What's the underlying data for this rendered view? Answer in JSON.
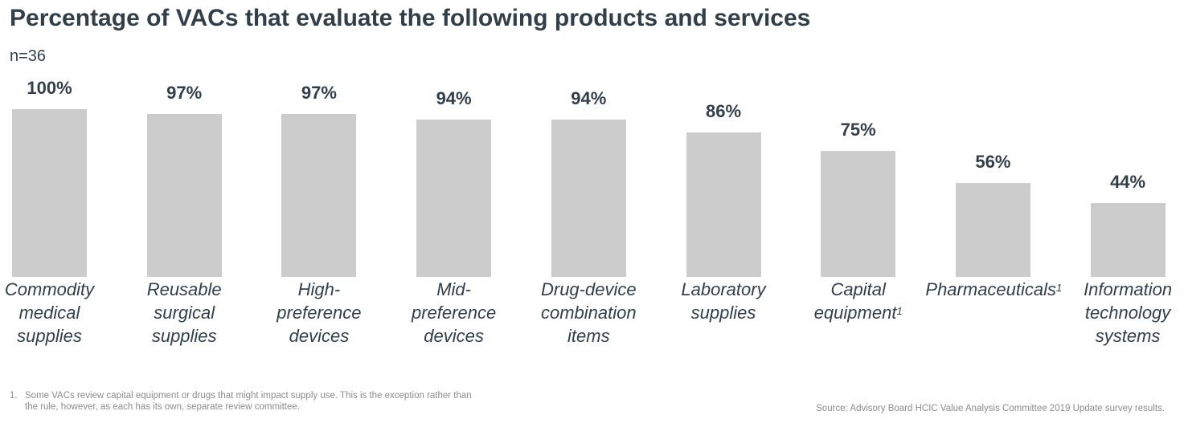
{
  "title": "Percentage of VACs that evaluate the following products and services",
  "sample": "n=36",
  "chart_data": {
    "type": "bar",
    "title": "Percentage of VACs that evaluate the following products and services",
    "xlabel": "",
    "ylabel": "",
    "ylim": [
      0,
      100
    ],
    "grid": false,
    "bar_color": "#cccccc",
    "categories": [
      {
        "lines": [
          "Commodity",
          "medical",
          "supplies"
        ],
        "footnote": ""
      },
      {
        "lines": [
          "Reusable",
          "surgical",
          "supplies"
        ],
        "footnote": ""
      },
      {
        "lines": [
          "High-",
          "preference",
          "devices"
        ],
        "footnote": ""
      },
      {
        "lines": [
          "Mid-",
          "preference",
          "devices"
        ],
        "footnote": ""
      },
      {
        "lines": [
          "Drug-device",
          "combination",
          "items"
        ],
        "footnote": ""
      },
      {
        "lines": [
          "Laboratory",
          "supplies"
        ],
        "footnote": ""
      },
      {
        "lines": [
          "Capital",
          "equipment"
        ],
        "footnote": "1"
      },
      {
        "lines": [
          "Pharmaceuticals"
        ],
        "footnote": "1"
      },
      {
        "lines": [
          "Information",
          "technology",
          "systems"
        ],
        "footnote": ""
      }
    ],
    "values": [
      100,
      97,
      97,
      94,
      94,
      86,
      75,
      56,
      44
    ],
    "labels": [
      "100%",
      "97%",
      "97%",
      "94%",
      "94%",
      "86%",
      "75%",
      "56%",
      "44%"
    ]
  },
  "footnote": {
    "number": "1.",
    "text": "Some VACs review capital equipment or drugs that might impact supply use. This is the exception rather than the rule, however, as each has its own, separate review committee."
  },
  "source": "Source: Advisory Board HCIC Value Analysis Committee 2019 Update survey results."
}
